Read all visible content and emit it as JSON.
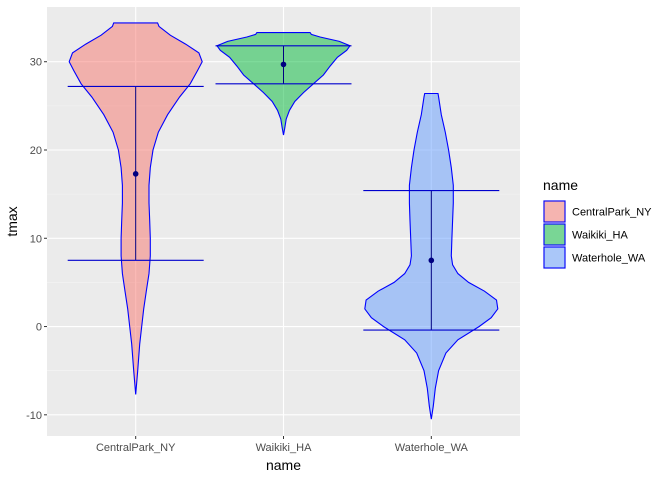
{
  "chart_data": {
    "type": "violin",
    "xlabel": "name",
    "ylabel": "tmax",
    "categories": [
      "CentralPark_NY",
      "Waikiki_HA",
      "Waterhole_WA"
    ],
    "ylim": [
      -12.4,
      36.2
    ],
    "yticks": [
      -10,
      0,
      10,
      20,
      30
    ],
    "grid": true,
    "legend": {
      "title": "name",
      "position": "right",
      "entries": [
        "CentralPark_NY",
        "Waikiki_HA",
        "Waterhole_WA"
      ]
    },
    "series": [
      {
        "name": "CentralPark_NY",
        "color": "#F8766D",
        "mean": 17.3,
        "sd_lower": 7.5,
        "sd_upper": 27.2,
        "min": -7.7,
        "max": 34.4,
        "density": [
          [
            -7.7,
            0.0
          ],
          [
            -5.0,
            0.03
          ],
          [
            -2.0,
            0.06
          ],
          [
            0.0,
            0.09
          ],
          [
            2.0,
            0.12
          ],
          [
            4.0,
            0.16
          ],
          [
            6.0,
            0.2
          ],
          [
            8.0,
            0.22
          ],
          [
            10.0,
            0.22
          ],
          [
            12.0,
            0.21
          ],
          [
            14.0,
            0.2
          ],
          [
            16.0,
            0.2
          ],
          [
            18.0,
            0.22
          ],
          [
            20.0,
            0.26
          ],
          [
            22.0,
            0.34
          ],
          [
            24.0,
            0.48
          ],
          [
            26.0,
            0.66
          ],
          [
            27.5,
            0.82
          ],
          [
            29.0,
            0.93
          ],
          [
            30.0,
            1.0
          ],
          [
            31.0,
            0.95
          ],
          [
            32.0,
            0.75
          ],
          [
            33.0,
            0.52
          ],
          [
            34.0,
            0.35
          ],
          [
            34.4,
            0.33
          ]
        ]
      },
      {
        "name": "Waikiki_HA",
        "color": "#00BA38",
        "mean": 29.7,
        "sd_lower": 27.5,
        "sd_upper": 31.8,
        "min": 21.7,
        "max": 33.3,
        "density": [
          [
            21.7,
            0.0
          ],
          [
            22.5,
            0.02
          ],
          [
            23.5,
            0.04
          ],
          [
            24.5,
            0.09
          ],
          [
            25.5,
            0.17
          ],
          [
            26.5,
            0.3
          ],
          [
            27.5,
            0.45
          ],
          [
            28.5,
            0.6
          ],
          [
            29.5,
            0.7
          ],
          [
            30.5,
            0.81
          ],
          [
            31.3,
            0.95
          ],
          [
            31.8,
            1.0
          ],
          [
            32.3,
            0.84
          ],
          [
            32.8,
            0.55
          ],
          [
            33.1,
            0.42
          ],
          [
            33.3,
            0.4
          ]
        ]
      },
      {
        "name": "Waterhole_WA",
        "color": "#619CFF",
        "mean": 7.5,
        "sd_lower": -0.4,
        "sd_upper": 15.4,
        "min": -10.5,
        "max": 26.4,
        "density": [
          [
            -10.5,
            0.0
          ],
          [
            -9.0,
            0.03
          ],
          [
            -7.0,
            0.06
          ],
          [
            -5.0,
            0.11
          ],
          [
            -3.0,
            0.22
          ],
          [
            -1.5,
            0.4
          ],
          [
            0.0,
            0.72
          ],
          [
            1.0,
            0.9
          ],
          [
            2.0,
            1.0
          ],
          [
            3.0,
            0.98
          ],
          [
            4.0,
            0.8
          ],
          [
            5.0,
            0.56
          ],
          [
            6.0,
            0.4
          ],
          [
            7.0,
            0.32
          ],
          [
            8.0,
            0.3
          ],
          [
            10.0,
            0.31
          ],
          [
            12.0,
            0.32
          ],
          [
            14.0,
            0.33
          ],
          [
            16.0,
            0.33
          ],
          [
            18.0,
            0.3
          ],
          [
            20.0,
            0.26
          ],
          [
            22.0,
            0.21
          ],
          [
            24.0,
            0.15
          ],
          [
            26.0,
            0.11
          ],
          [
            26.4,
            0.1
          ]
        ]
      }
    ]
  }
}
